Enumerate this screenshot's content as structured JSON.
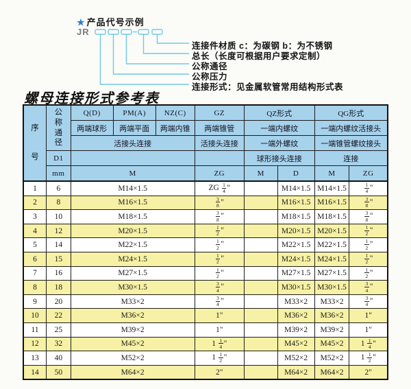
{
  "diagram": {
    "star": "★",
    "title": "产品代号示例",
    "code_prefix": "JR",
    "dash": "-",
    "labels": [
      "连接件材质  c：为碳钢  b：为不锈钢",
      "总长（长度可根据用户要求定制）",
      "公称通径",
      "公称压力",
      "连接形式：见金属软管常用结构形式表"
    ],
    "line_color": "#6fc9e1",
    "star_color": "#2f80cf"
  },
  "table": {
    "title": "螺母连接形式参考表",
    "colors": {
      "header_bg": "#a6d2ec",
      "stripe_bg": "#f6f1a4",
      "row_bg": "#ffffff",
      "border": "#1c1c1c"
    },
    "header": {
      "seq": "序号",
      "nominal": "公称通径",
      "d1": "D1",
      "mm": "mm",
      "groups": [
        "Q(D)",
        "PM(A)",
        "NZ(C)",
        "GZ",
        "QZ形式",
        "QG形式"
      ],
      "row2": [
        "两端球形",
        "两端平面",
        "两端内锥",
        "两端锥管",
        "一端内螺纹",
        "一端内螺纹活接头"
      ],
      "row3": [
        "活接头连接",
        "活接头连接",
        "一端外螺纹",
        "一端锥管螺纹接头"
      ],
      "row4": [
        "球形接头连接",
        "连接"
      ],
      "row5": [
        "M",
        "ZG",
        "M",
        "D",
        "M",
        "ZG"
      ]
    },
    "rows": [
      {
        "seq": "1",
        "mm": "6",
        "m": "M14×1.5",
        "gz": "ZG 1/4\"",
        "qz_m": "",
        "qz_d": "M14×1.5",
        "qg_m": "M14×1.5",
        "qg_zg": "1/4\""
      },
      {
        "seq": "2",
        "mm": "8",
        "m": "M16×1.5",
        "gz": "3/8\"",
        "qz_m": "",
        "qz_d": "M16×1.5",
        "qg_m": "M16×1.5",
        "qg_zg": "3/8\""
      },
      {
        "seq": "3",
        "mm": "10",
        "m": "M18×1.5",
        "gz": "3/8\"",
        "qz_m": "",
        "qz_d": "M18×1.5",
        "qg_m": "M18×1.5",
        "qg_zg": "3/8\""
      },
      {
        "seq": "4",
        "mm": "12",
        "m": "M20×1.5",
        "gz": "1/2\"",
        "qz_m": "",
        "qz_d": "M20×1.5",
        "qg_m": "M20×1.5",
        "qg_zg": "1/2\""
      },
      {
        "seq": "5",
        "mm": "14",
        "m": "M22×1.5",
        "gz": "1/2\"",
        "qz_m": "",
        "qz_d": "M22×1.5",
        "qg_m": "M22×1.5",
        "qg_zg": "1/2\""
      },
      {
        "seq": "6",
        "mm": "15",
        "m": "M24×1.5",
        "gz": "1/2\"",
        "qz_m": "",
        "qz_d": "M24×1.5",
        "qg_m": "M24×1.5",
        "qg_zg": "1/2\""
      },
      {
        "seq": "7",
        "mm": "16",
        "m": "M27×1.5",
        "gz": "1/2\"",
        "qz_m": "",
        "qz_d": "M27×1.5",
        "qg_m": "M27×1.5",
        "qg_zg": "1/2\""
      },
      {
        "seq": "8",
        "mm": "18",
        "m": "M30×1.5",
        "gz": "3/4\"",
        "qz_m": "",
        "qz_d": "M30×1.5",
        "qg_m": "M30×1.5",
        "qg_zg": "3/4\""
      },
      {
        "seq": "9",
        "mm": "20",
        "m": "M33×2",
        "gz": "3/4\"",
        "qz_m": "",
        "qz_d": "M33×2",
        "qg_m": "M33×2",
        "qg_zg": "3/4\""
      },
      {
        "seq": "10",
        "mm": "22",
        "m": "M36×2",
        "gz": "1\"",
        "qz_m": "",
        "qz_d": "M36×2",
        "qg_m": "M36×2",
        "qg_zg": "1\""
      },
      {
        "seq": "11",
        "mm": "25",
        "m": "M39×2",
        "gz": "1\"",
        "qz_m": "",
        "qz_d": "M39×2",
        "qg_m": "M39×2",
        "qg_zg": "1\""
      },
      {
        "seq": "12",
        "mm": "32",
        "m": "M45×2",
        "gz": "1 1/4\"",
        "qz_m": "",
        "qz_d": "M45×2",
        "qg_m": "M45×2",
        "qg_zg": "1 1/4\""
      },
      {
        "seq": "13",
        "mm": "40",
        "m": "M52×2",
        "gz": "1 1/2\"",
        "qz_m": "",
        "qz_d": "M52×2",
        "qg_m": "M52×2",
        "qg_zg": "1 1/2\""
      },
      {
        "seq": "14",
        "mm": "50",
        "m": "M64×2",
        "gz": "2\"",
        "qz_m": "",
        "qz_d": "M64×2",
        "qg_m": "M64×2",
        "qg_zg": "2\""
      }
    ]
  }
}
